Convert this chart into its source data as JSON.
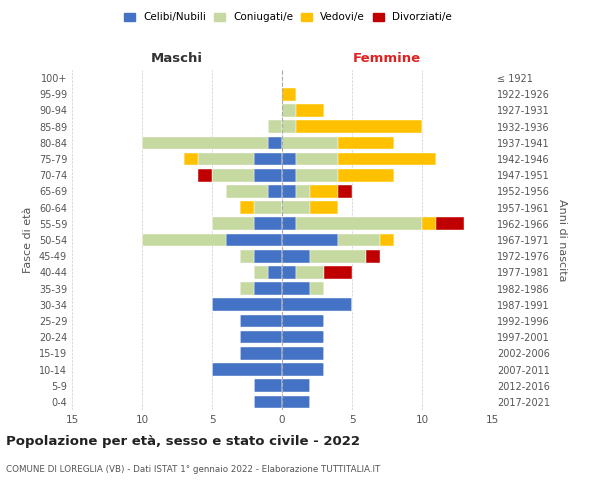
{
  "age_groups": [
    "0-4",
    "5-9",
    "10-14",
    "15-19",
    "20-24",
    "25-29",
    "30-34",
    "35-39",
    "40-44",
    "45-49",
    "50-54",
    "55-59",
    "60-64",
    "65-69",
    "70-74",
    "75-79",
    "80-84",
    "85-89",
    "90-94",
    "95-99",
    "100+"
  ],
  "birth_years": [
    "2017-2021",
    "2012-2016",
    "2007-2011",
    "2002-2006",
    "1997-2001",
    "1992-1996",
    "1987-1991",
    "1982-1986",
    "1977-1981",
    "1972-1976",
    "1967-1971",
    "1962-1966",
    "1957-1961",
    "1952-1956",
    "1947-1951",
    "1942-1946",
    "1937-1941",
    "1932-1936",
    "1927-1931",
    "1922-1926",
    "≤ 1921"
  ],
  "colors": {
    "celibe": "#4472c4",
    "coniugato": "#c5d9a0",
    "vedovo": "#ffc000",
    "divorziato": "#c00000"
  },
  "males": {
    "celibe": [
      2,
      2,
      5,
      3,
      3,
      3,
      5,
      2,
      1,
      2,
      4,
      2,
      0,
      1,
      2,
      2,
      1,
      0,
      0,
      0,
      0
    ],
    "coniugato": [
      0,
      0,
      0,
      0,
      0,
      0,
      0,
      1,
      1,
      1,
      6,
      3,
      2,
      3,
      3,
      4,
      9,
      1,
      0,
      0,
      0
    ],
    "vedovo": [
      0,
      0,
      0,
      0,
      0,
      0,
      0,
      0,
      0,
      0,
      0,
      0,
      1,
      0,
      0,
      1,
      0,
      0,
      0,
      0,
      0
    ],
    "divorziato": [
      0,
      0,
      0,
      0,
      0,
      0,
      0,
      0,
      0,
      0,
      0,
      0,
      0,
      0,
      1,
      0,
      0,
      0,
      0,
      0,
      0
    ]
  },
  "females": {
    "celibe": [
      2,
      2,
      3,
      3,
      3,
      3,
      5,
      2,
      1,
      2,
      4,
      1,
      0,
      1,
      1,
      1,
      0,
      0,
      0,
      0,
      0
    ],
    "coniugato": [
      0,
      0,
      0,
      0,
      0,
      0,
      0,
      1,
      2,
      4,
      3,
      9,
      2,
      1,
      3,
      3,
      4,
      1,
      1,
      0,
      0
    ],
    "vedovo": [
      0,
      0,
      0,
      0,
      0,
      0,
      0,
      0,
      0,
      0,
      1,
      1,
      2,
      2,
      4,
      7,
      4,
      9,
      2,
      1,
      0
    ],
    "divorziato": [
      0,
      0,
      0,
      0,
      0,
      0,
      0,
      0,
      2,
      1,
      0,
      2,
      0,
      1,
      0,
      0,
      0,
      0,
      0,
      0,
      0
    ]
  },
  "xlim": 15,
  "title": "Popolazione per età, sesso e stato civile - 2022",
  "subtitle": "COMUNE DI LOREGLIA (VB) - Dati ISTAT 1° gennaio 2022 - Elaborazione TUTTITALIA.IT",
  "xlabel_left": "Maschi",
  "xlabel_right": "Femmine",
  "ylabel_left": "Fasce di età",
  "ylabel_right": "Anni di nascita",
  "legend_labels": [
    "Celibi/Nubili",
    "Coniugati/e",
    "Vedovi/e",
    "Divorziati/e"
  ],
  "background_color": "#ffffff",
  "grid_color": "#cccccc"
}
